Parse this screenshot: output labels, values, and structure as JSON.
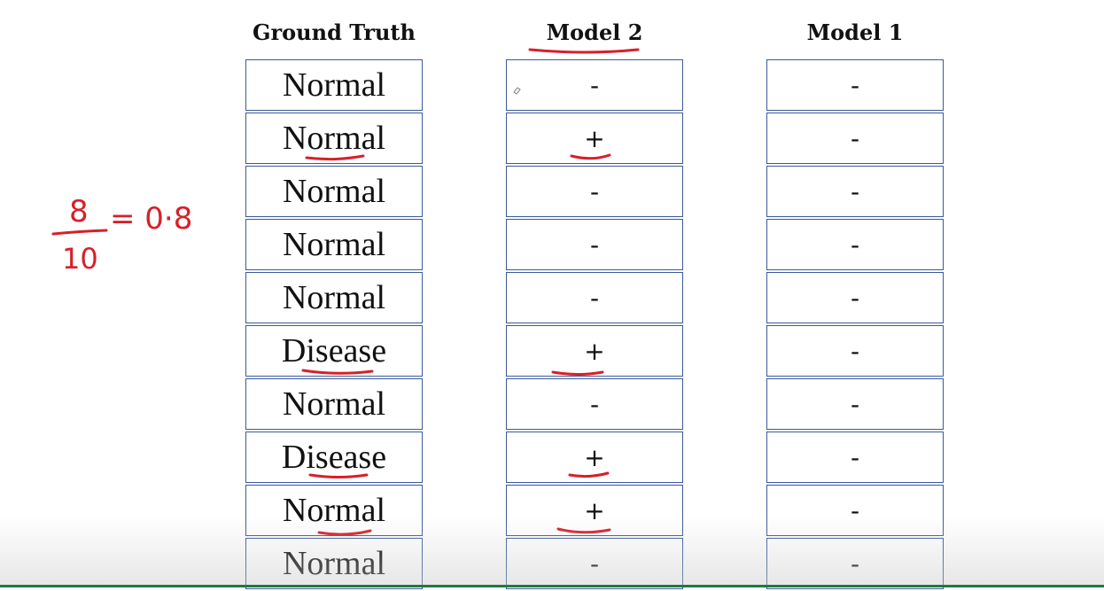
{
  "headers": {
    "ground_truth": "Ground Truth",
    "model2": "Model 2",
    "model1": "Model 1"
  },
  "ground_truth": [
    "Normal",
    "Normal",
    "Normal",
    "Normal",
    "Normal",
    "Disease",
    "Normal",
    "Disease",
    "Normal",
    "Normal"
  ],
  "model2": [
    "-",
    "+",
    "-",
    "-",
    "-",
    "+",
    "-",
    "+",
    "+",
    "-"
  ],
  "model1": [
    "-",
    "-",
    "-",
    "-",
    "-",
    "-",
    "-",
    "-",
    "-",
    "-"
  ],
  "annotation": {
    "numerator": "8",
    "denominator": "10",
    "result": "= 0·8"
  },
  "colors": {
    "ink": "#d6202a",
    "border": "#3a5a9a"
  }
}
